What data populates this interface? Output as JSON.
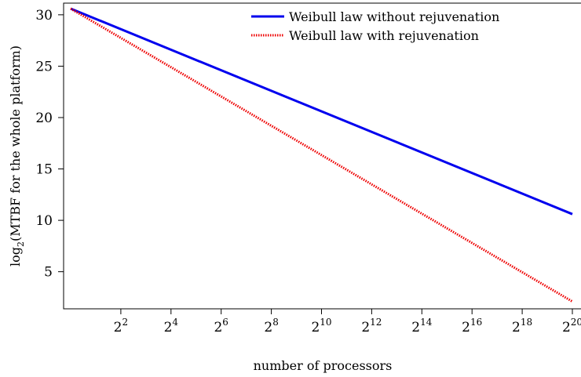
{
  "chart_data": {
    "type": "line",
    "xlabel": "number of processors",
    "ylabel_prefix": "log",
    "ylabel_sub": "2",
    "ylabel_rest": "(MTBF for the whole platform)",
    "x_scale": "log2",
    "x_ticks": [
      {
        "value": 4,
        "base": "2",
        "exp": "2"
      },
      {
        "value": 16,
        "base": "2",
        "exp": "4"
      },
      {
        "value": 64,
        "base": "2",
        "exp": "6"
      },
      {
        "value": 256,
        "base": "2",
        "exp": "8"
      },
      {
        "value": 1024,
        "base": "2",
        "exp": "10"
      },
      {
        "value": 4096,
        "base": "2",
        "exp": "12"
      },
      {
        "value": 16384,
        "base": "2",
        "exp": "14"
      },
      {
        "value": 65536,
        "base": "2",
        "exp": "16"
      },
      {
        "value": 262144,
        "base": "2",
        "exp": "18"
      },
      {
        "value": 1048576,
        "base": "2",
        "exp": "20"
      }
    ],
    "y_ticks": [
      5,
      10,
      15,
      20,
      25,
      30
    ],
    "xlim_log2": [
      0,
      20
    ],
    "ylim": [
      2,
      30.6
    ],
    "legend_position": "top-right",
    "series": [
      {
        "name": "Weibull law without rejuvenation",
        "color": "#0000ee",
        "style": "solid",
        "x": [
          1,
          1048576
        ],
        "y": [
          30.6,
          10.6
        ]
      },
      {
        "name": "Weibull law with rejuvenation",
        "color": "#ee0000",
        "style": "dotted",
        "x": [
          1,
          1048576
        ],
        "y": [
          30.6,
          2.1
        ]
      }
    ]
  }
}
